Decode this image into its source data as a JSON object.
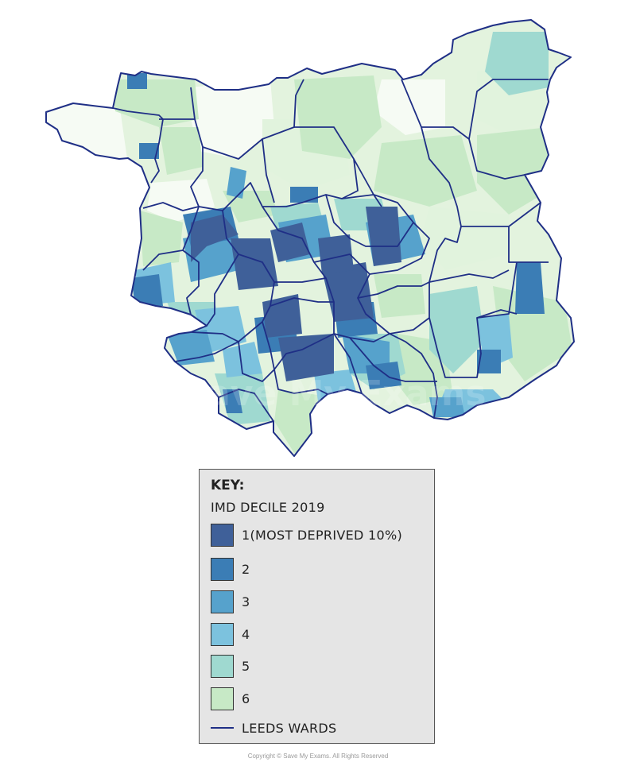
{
  "map": {
    "colors": {
      "d1": "#3f6099",
      "d2": "#3b7db5",
      "d3": "#56a2cc",
      "d4": "#7cc2de",
      "d5": "#9fd9d0",
      "d6": "#c7e9c6",
      "d7": "#e1f3dd",
      "d8": "#f4fbf2",
      "ward_line": "#1f2f86"
    },
    "watermark": "Save My Exams"
  },
  "key": {
    "title": "KEY:",
    "subtitle": "IMD DECILE 2019",
    "items": [
      {
        "label": "1(MOST DEPRIVED 10%)",
        "color": "#3f6099"
      },
      {
        "label": "2",
        "color": "#3b7db5"
      },
      {
        "label": "3",
        "color": "#56a2cc"
      },
      {
        "label": "4",
        "color": "#7cc2de"
      },
      {
        "label": "5",
        "color": "#9fd9d0"
      },
      {
        "label": "6",
        "color": "#c7e9c6"
      }
    ],
    "line_label": "LEEDS WARDS"
  },
  "copyright": "Copyright © Save My Exams. All Rights Reserved"
}
